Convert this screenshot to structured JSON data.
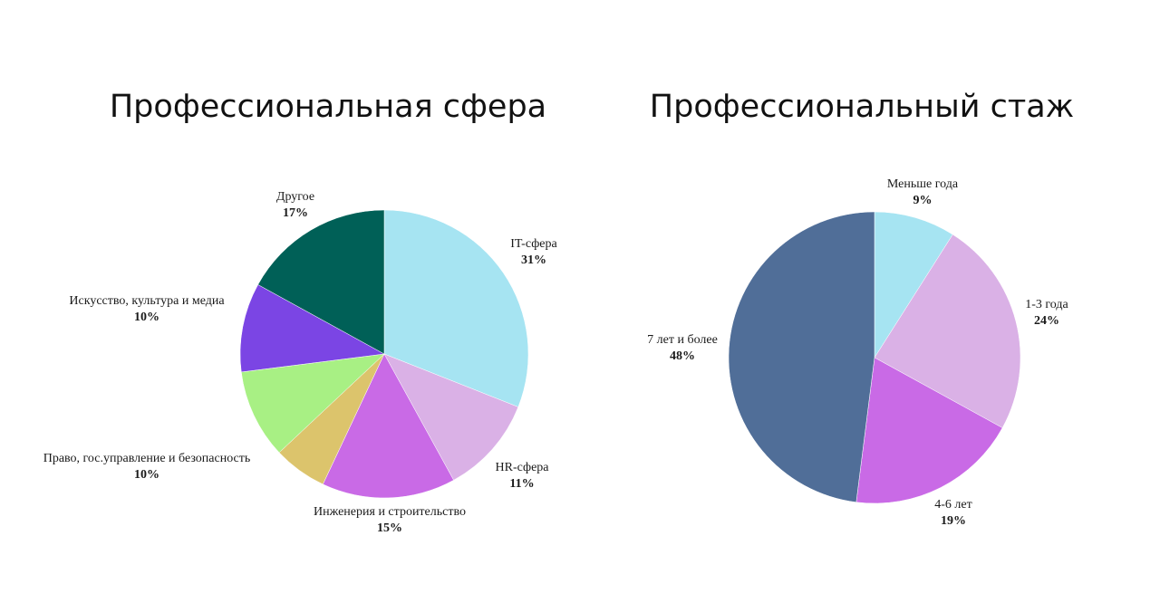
{
  "chart_data": [
    {
      "type": "pie",
      "title": "Профессиональная сфера",
      "slices": [
        {
          "label": "IT-сфера",
          "value": 31,
          "value_label": "31%",
          "color": "#a6e4f2"
        },
        {
          "label": "HR-сфера",
          "value": 11,
          "value_label": "11%",
          "color": "#dab1e6"
        },
        {
          "label": "Инженерия и строительство",
          "value": 15,
          "value_label": "15%",
          "color": "#c96ae6"
        },
        {
          "label": "",
          "value": 6,
          "value_label": "",
          "color": "#dcc46c"
        },
        {
          "label": "Право, гос.управление и безопасность",
          "value": 10,
          "value_label": "10%",
          "color": "#a8f084"
        },
        {
          "label": "Искусство, культура и медиа",
          "value": 10,
          "value_label": "10%",
          "color": "#7b45e4"
        },
        {
          "label": "Другое",
          "value": 17,
          "value_label": "17%",
          "color": "#006057"
        }
      ]
    },
    {
      "type": "pie",
      "title": "Профессиональный стаж",
      "slices": [
        {
          "label": "Меньше года",
          "value": 9,
          "value_label": "9%",
          "color": "#a6e4f2"
        },
        {
          "label": "1-3 года",
          "value": 24,
          "value_label": "24%",
          "color": "#dab1e6"
        },
        {
          "label": "4-6 лет",
          "value": 19,
          "value_label": "19%",
          "color": "#c96ae6"
        },
        {
          "label": "7 лет и более",
          "value": 48,
          "value_label": "48%",
          "color": "#506e98"
        }
      ]
    }
  ]
}
